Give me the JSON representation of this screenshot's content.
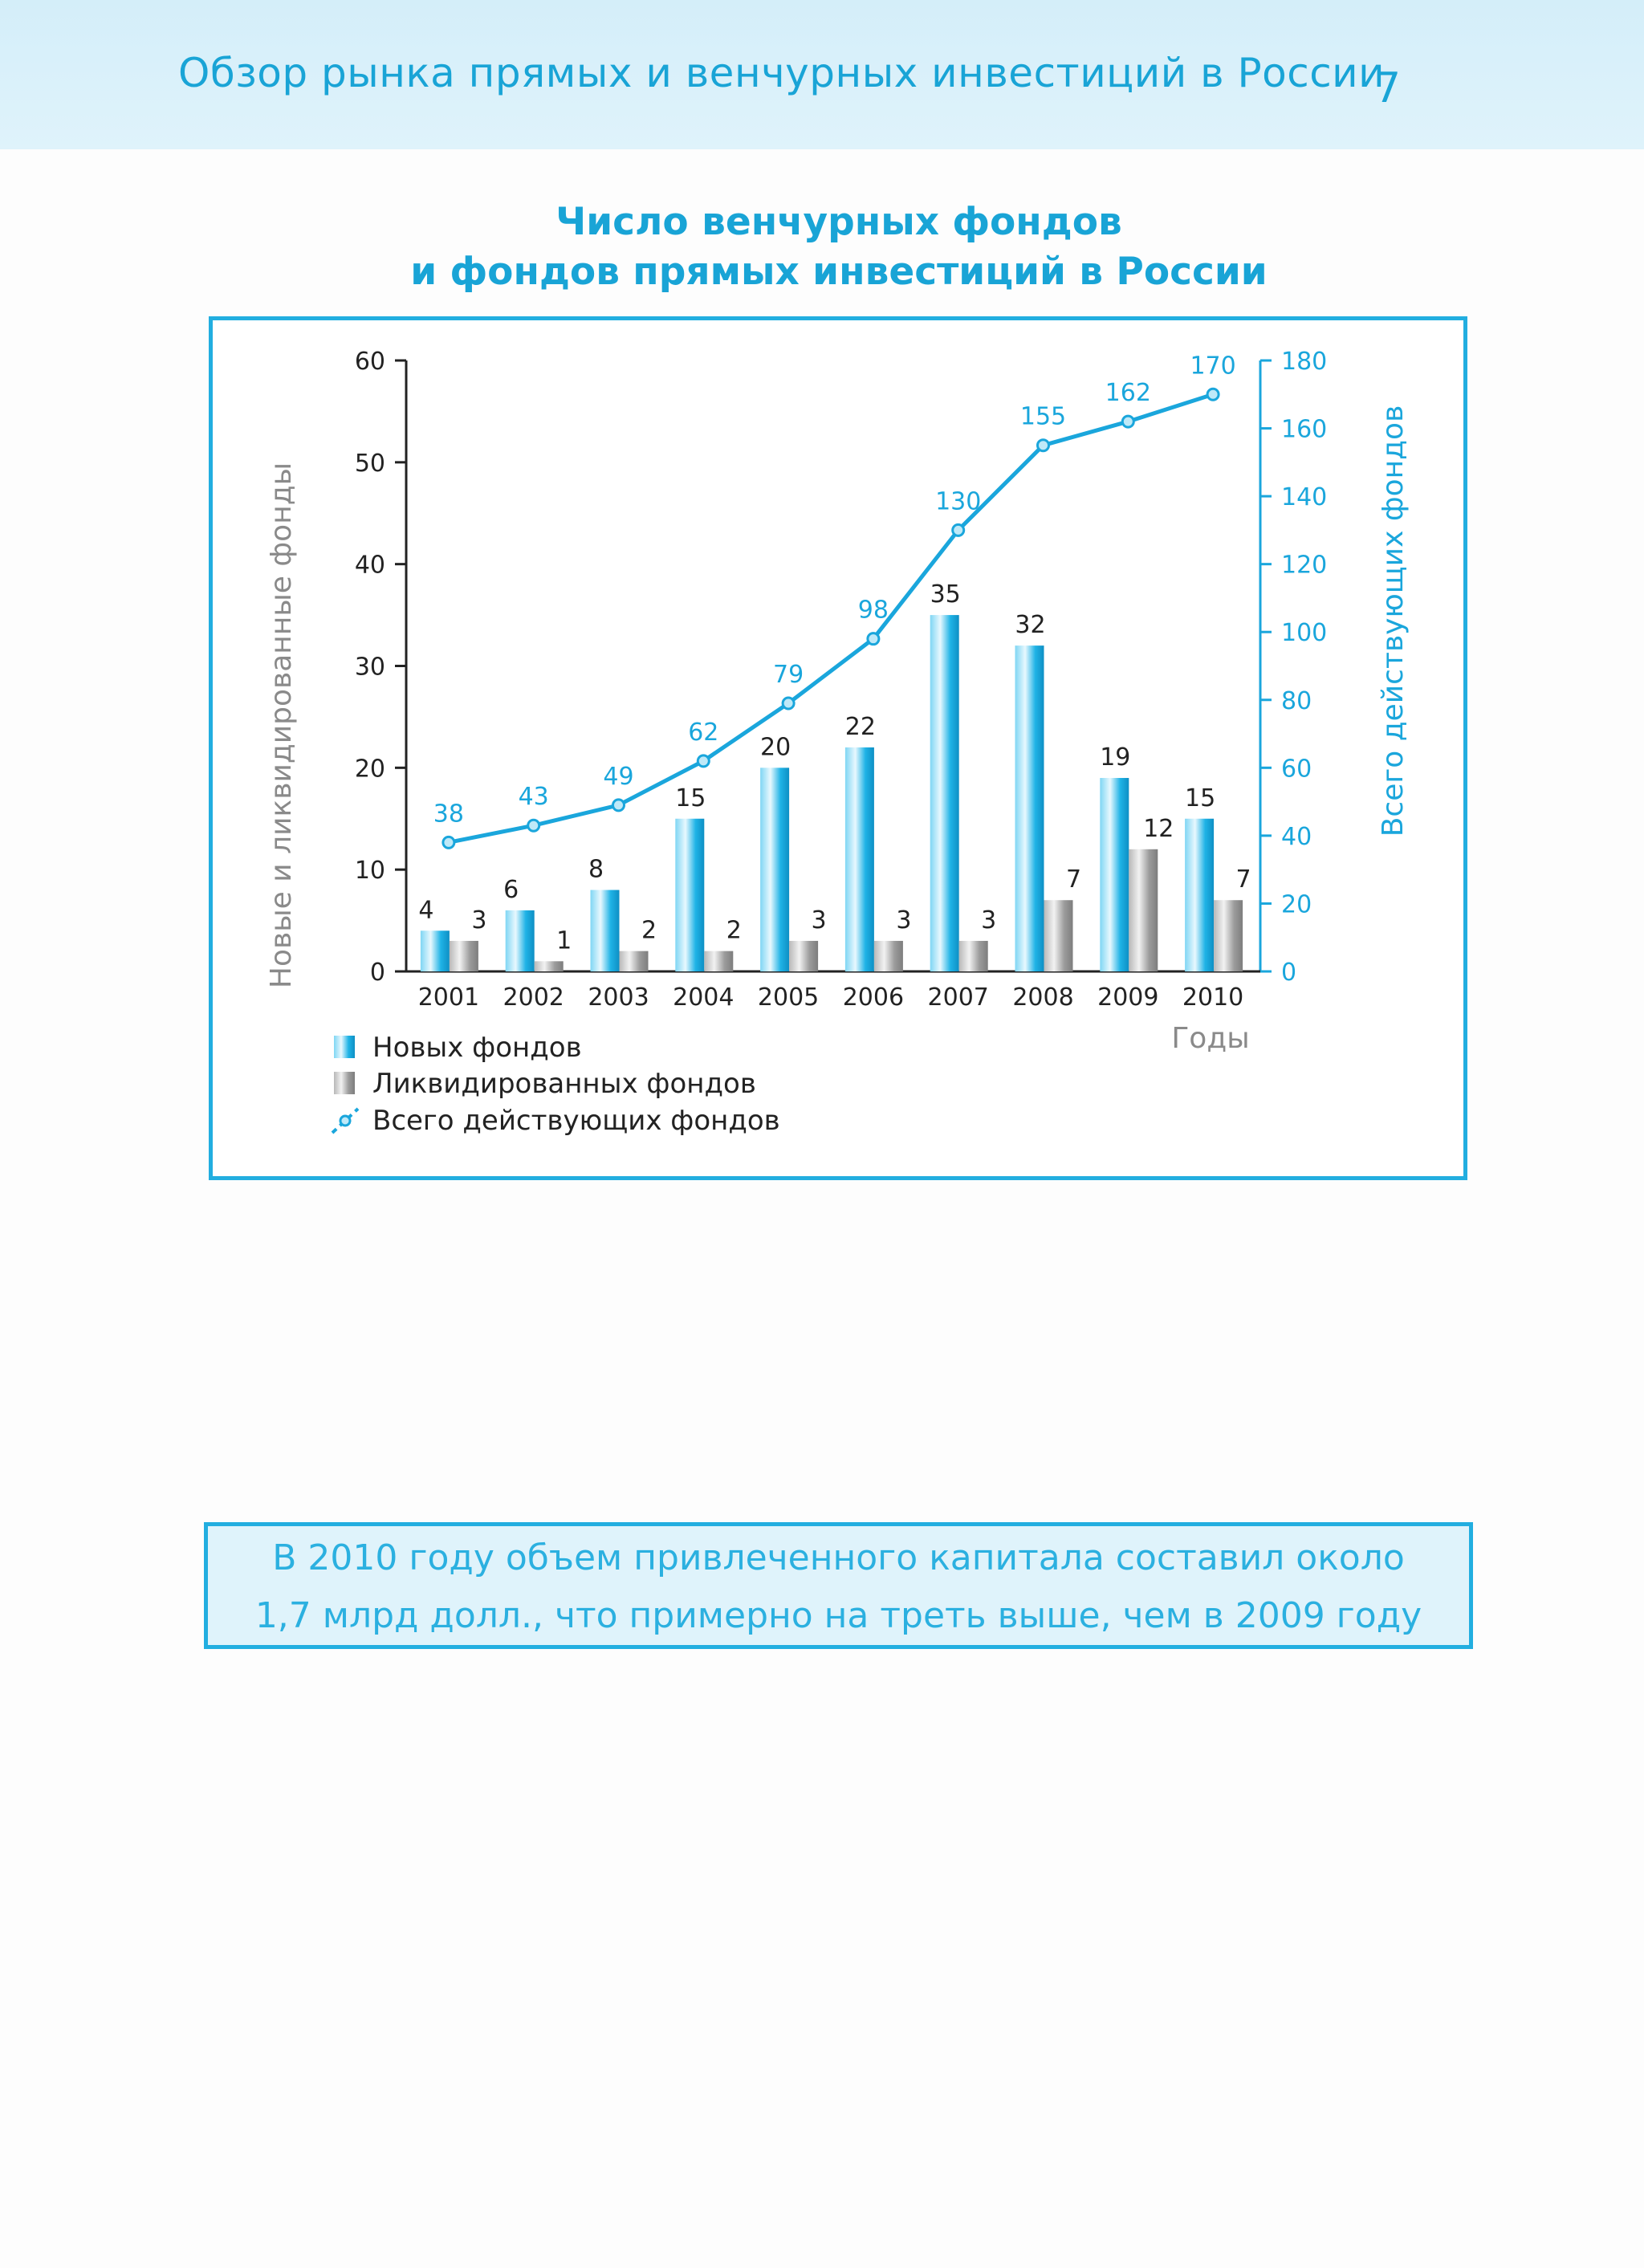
{
  "header": {
    "title": "Обзор рынка прямых и венчурных инвестиций в России",
    "page_number": "7"
  },
  "chart_data": {
    "type": "bar+line",
    "title_line1": "Число венчурных фондов",
    "title_line2": "и фондов прямых инвестиций в России",
    "categories": [
      "2001",
      "2002",
      "2003",
      "2004",
      "2005",
      "2006",
      "2007",
      "2008",
      "2009",
      "2010"
    ],
    "series": [
      {
        "name": "Новых фондов",
        "type": "bar",
        "axis": "left",
        "values": [
          4,
          6,
          8,
          15,
          20,
          22,
          35,
          32,
          19,
          15
        ]
      },
      {
        "name": "Ликвидированных фондов",
        "type": "bar",
        "axis": "left",
        "values": [
          3,
          1,
          2,
          2,
          3,
          3,
          3,
          7,
          12,
          7
        ]
      },
      {
        "name": "Всего действующих фондов",
        "type": "line",
        "axis": "right",
        "values": [
          38,
          43,
          49,
          62,
          79,
          98,
          130,
          155,
          162,
          170
        ]
      }
    ],
    "ylabel_left": "Новые и ликвидированные фонды",
    "ylabel_right": "Всего действующих фондов",
    "xlabel": "Годы",
    "ylim_left": [
      0,
      60
    ],
    "yticks_left": [
      "0",
      "10",
      "20",
      "30",
      "40",
      "50",
      "60"
    ],
    "ylim_right": [
      0,
      180
    ],
    "yticks_right": [
      "0",
      "20",
      "40",
      "60",
      "80",
      "100",
      "120",
      "140",
      "160",
      "180"
    ],
    "legend_position": "bottom-left",
    "colors": {
      "new": "#1fb3e6",
      "liquidated": "#9c9c9c",
      "total": "#1aa6dc",
      "axis_right": "#1aa6dc",
      "axis_left": "#222222"
    }
  },
  "note": {
    "line1": "В 2010 году объем привлеченного капитала составил около",
    "line2": "1,7 млрд долл., что примерно на треть выше, чем в 2009 году"
  }
}
